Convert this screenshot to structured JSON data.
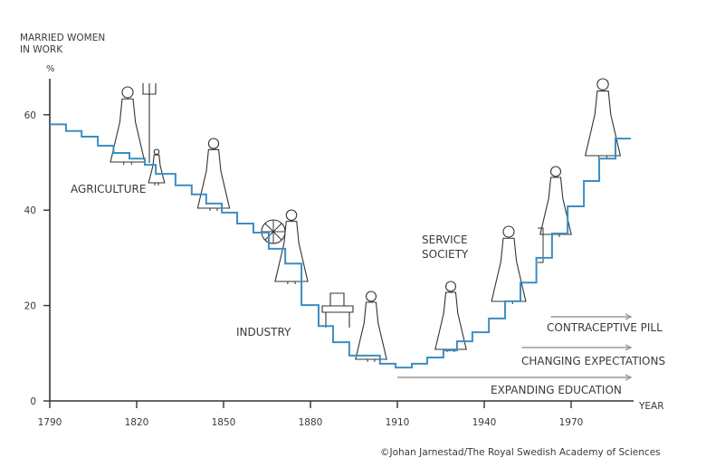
{
  "chart_data": {
    "type": "line",
    "style": "step",
    "ylabel": "MARRIED WOMEN\nIN WORK",
    "ylabel_lines": [
      "MARRIED WOMEN",
      "IN WORK"
    ],
    "yunit": "%",
    "xlabel": "YEAR",
    "xlim": [
      1790,
      1990
    ],
    "ylim": [
      0,
      68
    ],
    "xticks": [
      1790,
      1820,
      1850,
      1880,
      1910,
      1940,
      1970
    ],
    "yticks": [
      0,
      20,
      40,
      60
    ],
    "grid": false,
    "line_color": "#3b8ec4",
    "series": [
      {
        "steps": [
          [
            1790,
            58
          ],
          [
            1795.6,
            56.6
          ],
          [
            1801,
            55.4
          ],
          [
            1806.6,
            53.5
          ],
          [
            1812,
            52
          ],
          [
            1817.5,
            50.8
          ],
          [
            1822.8,
            49.5
          ],
          [
            1826.6,
            47.6
          ],
          [
            1833.4,
            45.2
          ],
          [
            1839,
            43.3
          ],
          [
            1844,
            41.4
          ],
          [
            1849.4,
            39.5
          ],
          [
            1854.7,
            37.2
          ],
          [
            1860.3,
            35.3
          ],
          [
            1865.6,
            31.9
          ],
          [
            1871.3,
            28.8
          ],
          [
            1876.9,
            20.1
          ],
          [
            1882.8,
            15.7
          ],
          [
            1887.8,
            12.3
          ],
          [
            1893.4,
            9.5
          ],
          [
            1904,
            7.8
          ],
          [
            1909.4,
            7.0
          ],
          [
            1915,
            7.8
          ],
          [
            1920.3,
            9.1
          ],
          [
            1925.9,
            10.6
          ],
          [
            1930.6,
            12.5
          ],
          [
            1935.9,
            14.4
          ],
          [
            1941.6,
            17.3
          ],
          [
            1947.2,
            20.9
          ],
          [
            1952.5,
            24.8
          ],
          [
            1958,
            30
          ],
          [
            1963.4,
            35.1
          ],
          [
            1968.8,
            40.8
          ],
          [
            1974.4,
            46.1
          ],
          [
            1979.7,
            50.8
          ],
          [
            1985.3,
            55
          ]
        ],
        "end_year": 1990.6
      }
    ],
    "annotations": {
      "eras": [
        "AGRICULTURE",
        "INDUSTRY",
        "SERVICE",
        "SOCIETY"
      ],
      "trends": [
        {
          "label": "CONTRACEPTIVE PILL",
          "from_year": 1963
        },
        {
          "label": "CHANGING EXPECTATIONS",
          "from_year": 1953
        },
        {
          "label": "EXPANDING EDUCATION",
          "from_year": 1910
        }
      ]
    },
    "credit": "©Johan Jarnestad/The Royal Swedish Academy of Sciences"
  }
}
